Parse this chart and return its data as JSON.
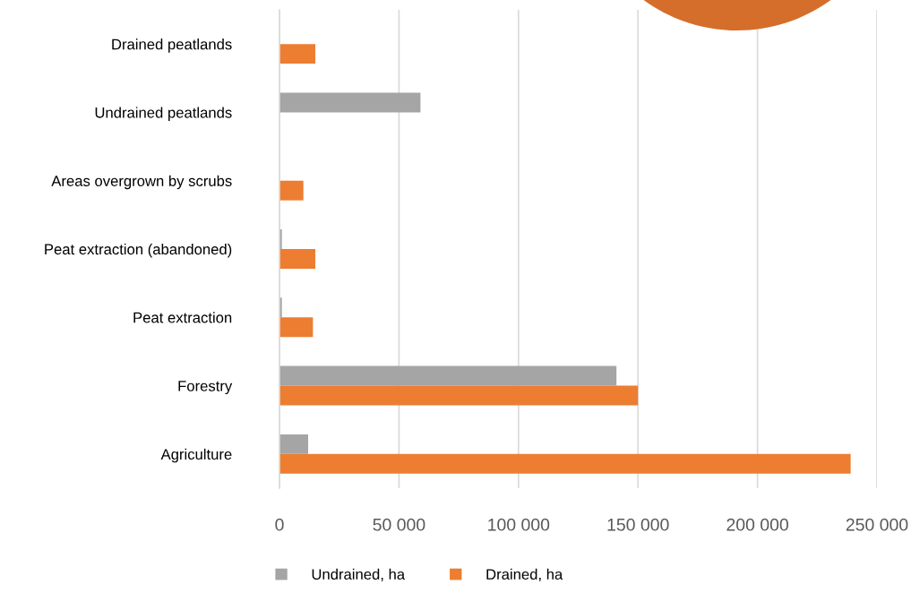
{
  "chart_data": {
    "type": "bar",
    "orientation": "horizontal",
    "categories": [
      "Drained peatlands",
      "Undrained peatlands",
      "Areas overgrown by scrubs",
      "Peat extraction (abandoned)",
      "Peat extraction",
      "Forestry",
      "Agriculture"
    ],
    "series": [
      {
        "name": "Undrained, ha",
        "color": "#a5a5a5",
        "values": [
          null,
          59000,
          null,
          1000,
          1000,
          141000,
          12000
        ]
      },
      {
        "name": "Drained, ha",
        "color": "#ed7d31",
        "values": [
          15000,
          null,
          10000,
          15000,
          14000,
          150000,
          239000
        ]
      }
    ],
    "xlim": [
      0,
      250000
    ],
    "xticks": [
      0,
      {
        "value": 50000,
        "label": "50 000"
      },
      {
        "value": 100000,
        "label": "100 000"
      },
      {
        "value": 150000,
        "label": "150 000"
      },
      {
        "value": 200000,
        "label": "200 000"
      },
      {
        "value": 250000,
        "label": "250 000"
      }
    ],
    "grid": "x",
    "legend": "bottom"
  }
}
